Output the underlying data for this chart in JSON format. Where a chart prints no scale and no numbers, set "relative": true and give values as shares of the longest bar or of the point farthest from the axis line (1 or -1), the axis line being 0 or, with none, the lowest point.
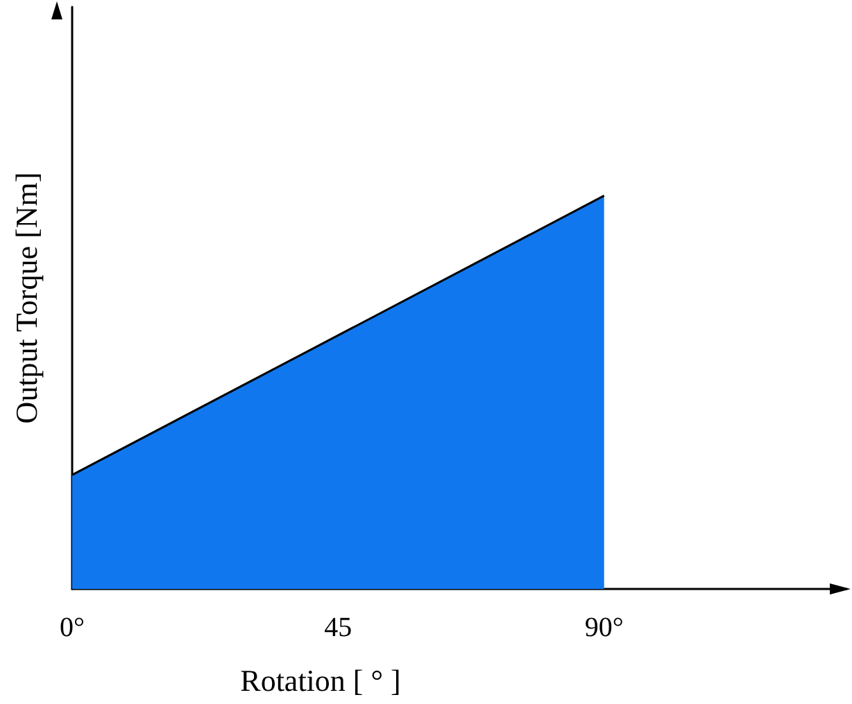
{
  "chart_data": {
    "type": "area",
    "xlabel": "Rotation [ ° ]",
    "ylabel": "Output Torque [Nm]",
    "x": [
      0,
      90
    ],
    "series": [
      {
        "color": "#1177ee",
        "values": [
          0.29,
          1
        ]
      }
    ],
    "relative": true,
    "xlim": [
      0,
      131
    ],
    "xticks": [
      {
        "value": 0,
        "label": "0°"
      },
      45,
      {
        "value": 90,
        "label": "90°"
      }
    ],
    "grid": false,
    "marker": "none",
    "line_style": "solid"
  }
}
